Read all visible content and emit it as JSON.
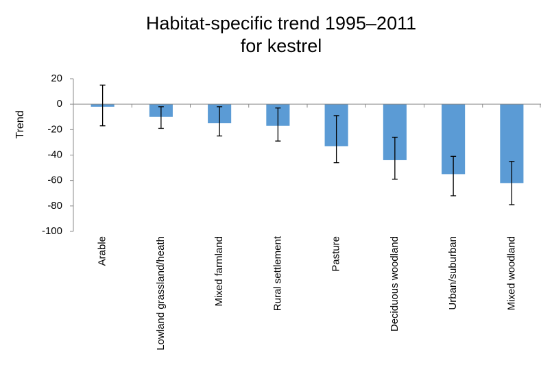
{
  "chart_data": {
    "type": "bar",
    "title": [
      "Habitat-specific trend 1995–2011",
      "for kestrel"
    ],
    "y_label": "Trend",
    "categories": [
      "Arable",
      "Lowland grassland/heath",
      "Mixed farmland",
      "Rural settlement",
      "Pasture",
      "Deciduous woodland",
      "Urban/suburban",
      "Mixed woodland"
    ],
    "values": [
      -2,
      -10,
      -15,
      -17,
      -33,
      -44,
      -55,
      -62
    ],
    "ci_low": [
      -17,
      -19,
      -25,
      -29,
      -46,
      -59,
      -72,
      -79
    ],
    "ci_high": [
      15,
      -2,
      -2,
      -3,
      -9,
      -26,
      -41,
      -45
    ],
    "color": "#5b9bd5",
    "ylim": [
      -100,
      20
    ],
    "yticks": [
      -100,
      -80,
      -60,
      -40,
      -20,
      0,
      20
    ],
    "grid": false
  }
}
